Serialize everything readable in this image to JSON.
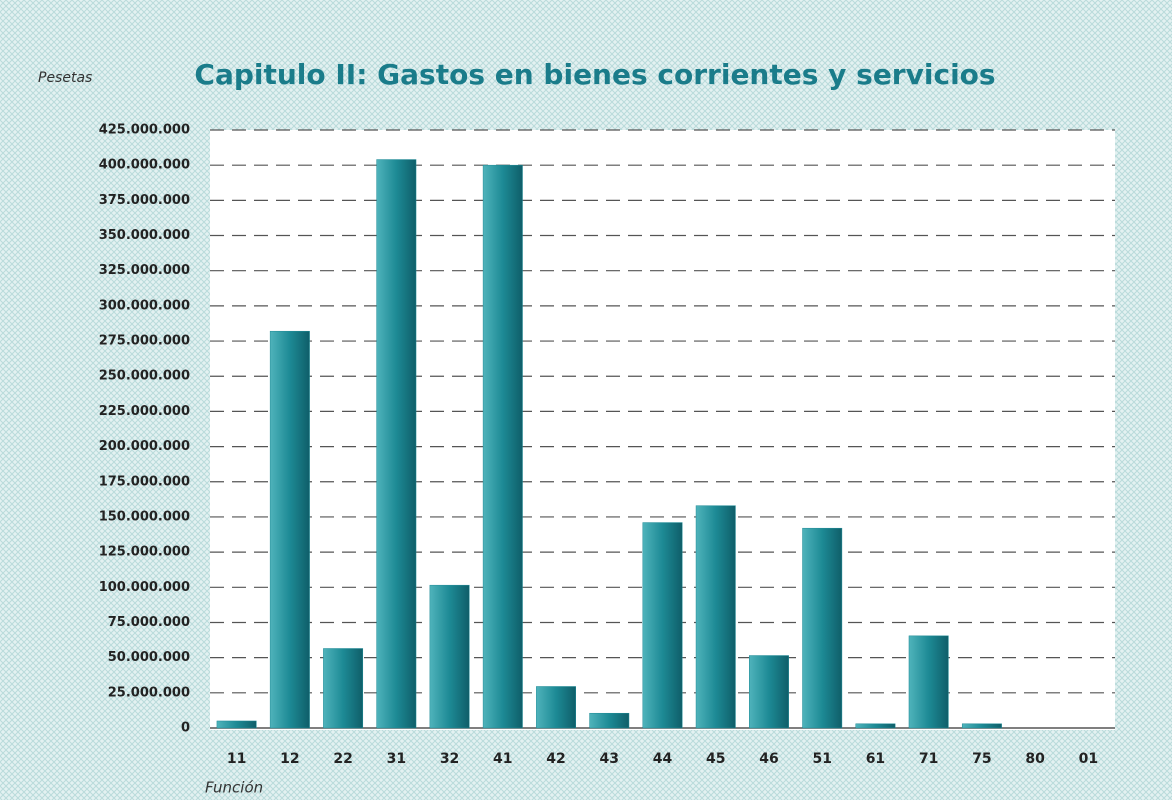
{
  "chart_data": {
    "type": "bar",
    "title": "Capitulo II: Gastos en bienes corrientes y servicios",
    "y_label": "Pesetas",
    "x_label": "Función",
    "categories": [
      "11",
      "12",
      "22",
      "31",
      "32",
      "41",
      "42",
      "43",
      "44",
      "45",
      "46",
      "51",
      "61",
      "71",
      "75",
      "80",
      "01"
    ],
    "values": [
      5000000,
      282000000,
      56500000,
      404000000,
      101500000,
      400000000,
      29500000,
      10500000,
      146000000,
      158000000,
      51500000,
      142000000,
      3000000,
      65500000,
      3000000,
      0,
      0
    ],
    "color": "#1d8a95",
    "ylim": [
      0,
      425000000
    ],
    "yticks": [
      0,
      {
        "value": 25000000,
        "label": "25.000.000"
      },
      {
        "value": 50000000,
        "label": "50.000.000"
      },
      {
        "value": 75000000,
        "label": "75.000.000"
      },
      {
        "value": 100000000,
        "label": "100.000.000"
      },
      {
        "value": 125000000,
        "label": "125.000.000"
      },
      {
        "value": 150000000,
        "label": "150.000.000"
      },
      {
        "value": 175000000,
        "label": "175.000.000"
      },
      {
        "value": 200000000,
        "label": "200.000.000"
      },
      {
        "value": 225000000,
        "label": "225.000.000"
      },
      {
        "value": 250000000,
        "label": "250.000.000"
      },
      {
        "value": 275000000,
        "label": "275.000.000"
      },
      {
        "value": 300000000,
        "label": "300.000.000"
      },
      {
        "value": 325000000,
        "label": "325.000.000"
      },
      {
        "value": 350000000,
        "label": "350.000.000"
      },
      {
        "value": 375000000,
        "label": "375.000.000"
      },
      {
        "value": 400000000,
        "label": "400.000.000"
      },
      {
        "value": 425000000,
        "label": "425.000.000"
      }
    ],
    "grid": true
  }
}
